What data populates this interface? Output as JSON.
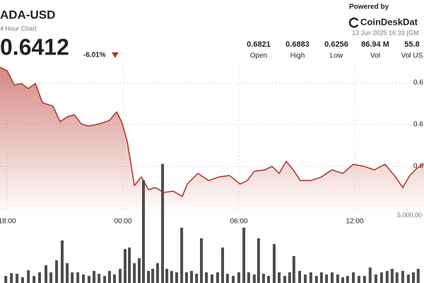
{
  "header": {
    "symbol": "ADA-USD",
    "interval": "4 Hour Chart",
    "price": "0.6412",
    "change": "-6.01%",
    "powered_by": "Powered by",
    "brand": "CoinDeskDat",
    "timestamp": "13 Jun 2025 16:33 (GM",
    "stats": [
      {
        "value": "0.6821",
        "label": "Open"
      },
      {
        "value": "0.6883",
        "label": "High"
      },
      {
        "value": "0.6256",
        "label": "Low"
      },
      {
        "value": "86.94 M",
        "label": "Vol"
      },
      {
        "value": "55.8",
        "label": "Vol US"
      }
    ]
  },
  "chart_data": {
    "type": "line",
    "xlim": [
      17.63,
      39.59
    ],
    "xticks": [
      {
        "value": 18,
        "label": "18:00"
      },
      {
        "value": 24,
        "label": "00:00"
      },
      {
        "value": 30,
        "label": "06:00"
      },
      {
        "value": 36,
        "label": "12:00"
      }
    ],
    "ylim": [
      0.5841,
      0.7197
    ],
    "yticks": [
      {
        "value": 0.68,
        "label": "0.6"
      },
      {
        "value": 0.66,
        "label": "0.6"
      },
      {
        "value": 0.64,
        "label": "0.6"
      }
    ],
    "y2lim": [
      0,
      21000000
    ],
    "y2ticks": [
      {
        "value": 5000000,
        "label": "5,000,00"
      }
    ],
    "grid": true,
    "series": [
      {
        "color": "#b5362b",
        "x": [
          17.63,
          18.0,
          18.37,
          18.73,
          19.1,
          19.46,
          19.83,
          20.38,
          20.74,
          21.11,
          21.48,
          21.84,
          22.21,
          22.76,
          23.3,
          23.67,
          23.93,
          24.22,
          24.59,
          24.95,
          25.32,
          25.68,
          26.12,
          26.6,
          27.07,
          27.33,
          27.88,
          28.43,
          28.98,
          29.52,
          30.07,
          30.44,
          30.8,
          31.35,
          31.72,
          32.09,
          32.45,
          32.82,
          33.18,
          33.73,
          34.28,
          34.83,
          35.38,
          35.93,
          36.48,
          37.02,
          37.57,
          38.12,
          38.49,
          38.85,
          39.22,
          39.59
        ],
        "values": [
          0.6875,
          0.6858,
          0.679,
          0.6797,
          0.6773,
          0.6797,
          0.6705,
          0.6688,
          0.6614,
          0.6637,
          0.6647,
          0.6603,
          0.6593,
          0.6603,
          0.662,
          0.6661,
          0.6614,
          0.6519,
          0.6308,
          0.6349,
          0.6288,
          0.6298,
          0.6275,
          0.6281,
          0.6256,
          0.6315,
          0.6366,
          0.6332,
          0.6349,
          0.6356,
          0.6315,
          0.6332,
          0.6376,
          0.6383,
          0.64,
          0.6366,
          0.6424,
          0.6383,
          0.6332,
          0.6332,
          0.6349,
          0.6383,
          0.6366,
          0.641,
          0.64,
          0.6383,
          0.641,
          0.6349,
          0.6298,
          0.6356,
          0.639,
          0.6412
        ]
      },
      {
        "type": "bar",
        "axis": "y2",
        "color": "#4d4d4d",
        "x": [
          17.93,
          18.22,
          18.51,
          18.8,
          19.1,
          19.39,
          19.68,
          20.01,
          20.27,
          20.56,
          20.85,
          21.11,
          21.37,
          21.66,
          21.95,
          22.24,
          22.5,
          22.76,
          23.05,
          23.3,
          23.56,
          23.85,
          24.11,
          24.33,
          24.59,
          24.84,
          25.06,
          25.32,
          25.54,
          25.79,
          26.05,
          26.27,
          26.52,
          26.78,
          27.04,
          27.29,
          27.55,
          27.81,
          28.06,
          28.32,
          28.61,
          28.9,
          29.16,
          29.41,
          29.71,
          30.0,
          30.26,
          30.51,
          30.8,
          31.02,
          31.28,
          31.54,
          31.83,
          32.09,
          32.38,
          32.63,
          32.85,
          33.15,
          33.44,
          33.73,
          34.02,
          34.28,
          34.54,
          34.83,
          35.12,
          35.38,
          35.63,
          35.93,
          36.22,
          36.51,
          36.8,
          37.1,
          37.39,
          37.68,
          37.94,
          38.19,
          38.49,
          38.78,
          39.04,
          39.29
        ],
        "values": [
          526000,
          737000,
          684000,
          421000,
          947000,
          526000,
          789000,
          1316000,
          789000,
          1684000,
          3158000,
          1474000,
          789000,
          789000,
          632000,
          526000,
          895000,
          684000,
          526000,
          895000,
          632000,
          1053000,
          2526000,
          2632000,
          1474000,
          1842000,
          7632000,
          895000,
          1053000,
          1474000,
          8842000,
          1053000,
          895000,
          789000,
          4105000,
          789000,
          895000,
          684000,
          3316000,
          789000,
          632000,
          789000,
          2632000,
          684000,
          526000,
          789000,
          4105000,
          789000,
          632000,
          3316000,
          684000,
          526000,
          2895000,
          789000,
          526000,
          789000,
          2000000,
          895000,
          632000,
          789000,
          526000,
          789000,
          632000,
          789000,
          632000,
          421000,
          526000,
          789000,
          526000,
          526000,
          1158000,
          632000,
          789000,
          895000,
          1053000,
          789000,
          895000,
          632000,
          789000,
          1053000
        ]
      }
    ]
  }
}
